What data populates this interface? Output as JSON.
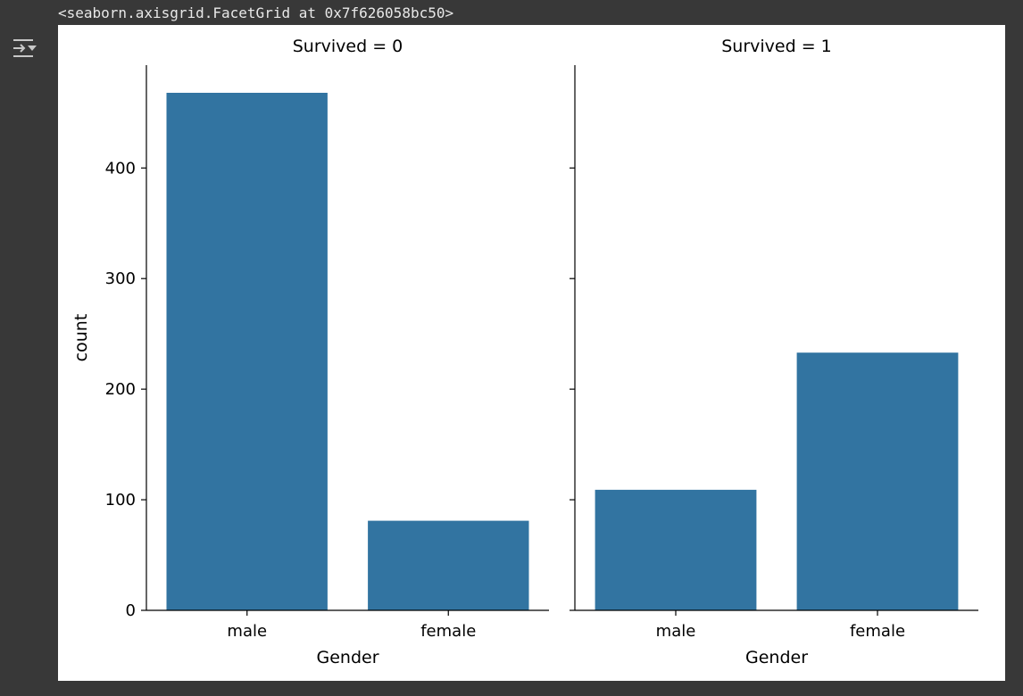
{
  "output": {
    "toggle_icon": "output-collapse-icon",
    "repr_text": "<seaborn.axisgrid.FacetGrid at 0x7f626058bc50>"
  },
  "colors": {
    "page_background": "#383838",
    "plot_background": "#ffffff",
    "bar_color": "#3274a1",
    "icon_color": "#c8c8c8"
  },
  "chart_data": [
    {
      "type": "bar",
      "title": "Survived = 0",
      "xlabel": "Gender",
      "ylabel": "count",
      "categories": [
        "male",
        "female"
      ],
      "values": [
        468,
        81
      ],
      "ylim": [
        0,
        493
      ],
      "yticks": [
        0,
        100,
        200,
        300,
        400
      ],
      "grid": false,
      "legend": "none"
    },
    {
      "type": "bar",
      "title": "Survived = 1",
      "xlabel": "Gender",
      "ylabel": "",
      "categories": [
        "male",
        "female"
      ],
      "values": [
        109,
        233
      ],
      "ylim": [
        0,
        493
      ],
      "yticks": [
        0,
        100,
        200,
        300,
        400
      ],
      "grid": false,
      "legend": "none"
    }
  ]
}
